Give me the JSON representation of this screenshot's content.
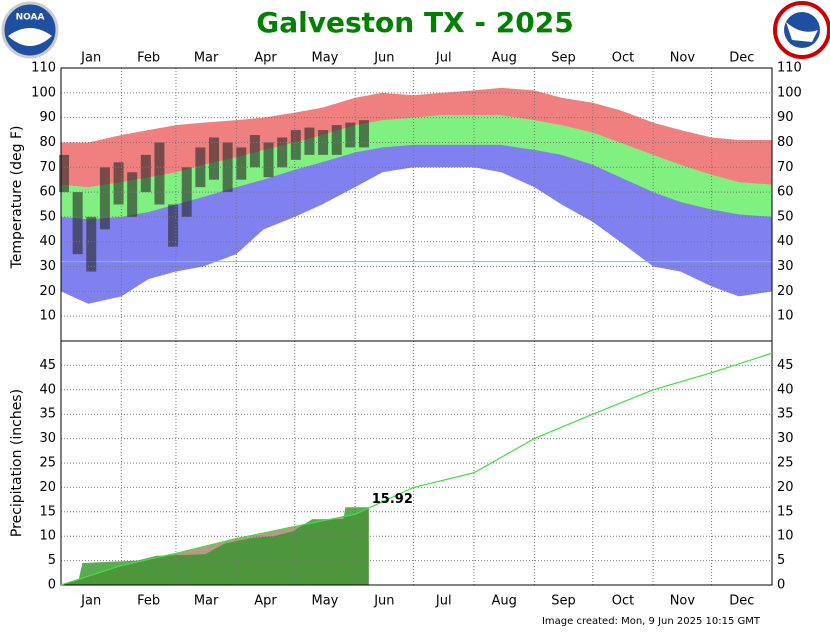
{
  "title": "Galveston TX - 2025",
  "logo_text": "NOAA",
  "footer": "Image created: Mon, 9 Jun 2025 10:15 GMT",
  "chart_data": [
    {
      "type": "temperature-band",
      "y_label": "Temperature (deg F)",
      "categories": [
        "Jan",
        "Feb",
        "Mar",
        "Apr",
        "May",
        "Jun",
        "Jul",
        "Aug",
        "Sep",
        "Oct",
        "Nov",
        "Dec"
      ],
      "xlim": [
        1,
        366
      ],
      "xticks": [
        1,
        32,
        60,
        91,
        121,
        152,
        182,
        213,
        244,
        274,
        305,
        335,
        366
      ],
      "ylim": [
        0,
        110
      ],
      "yticks": [
        10,
        20,
        30,
        40,
        50,
        60,
        70,
        80,
        90,
        100,
        110
      ],
      "grid": true,
      "freeze_line": 32,
      "x": [
        1,
        15,
        32,
        46,
        60,
        74,
        91,
        105,
        121,
        135,
        152,
        166,
        182,
        196,
        213,
        227,
        244,
        258,
        274,
        288,
        305,
        319,
        335,
        349,
        366
      ],
      "record_high": [
        80,
        80,
        83,
        85,
        87,
        88,
        89,
        90,
        92,
        94,
        98,
        100,
        99,
        100,
        101,
        102,
        101,
        98,
        96,
        93,
        88,
        85,
        82,
        81,
        81
      ],
      "normal_high": [
        63,
        62,
        64,
        66,
        68,
        71,
        74,
        77,
        80,
        83,
        87,
        89,
        90,
        91,
        91,
        91,
        89,
        87,
        84,
        80,
        75,
        71,
        67,
        64,
        63
      ],
      "normal_low": [
        50,
        49,
        50,
        52,
        55,
        58,
        62,
        65,
        69,
        72,
        76,
        78,
        79,
        79,
        79,
        79,
        77,
        75,
        71,
        66,
        60,
        56,
        53,
        51,
        50
      ],
      "record_low": [
        20,
        15,
        18,
        25,
        28,
        30,
        35,
        45,
        50,
        55,
        62,
        68,
        70,
        70,
        70,
        68,
        62,
        55,
        48,
        40,
        30,
        28,
        22,
        18,
        20
      ],
      "colors": {
        "record_high": "#f08080",
        "normal_high": "#80f080",
        "normal_low": "#8080f0",
        "observed": "rgba(40,40,40,0.6)",
        "freeze": "#40e0e0"
      },
      "obs_x": [
        1,
        8,
        15,
        22,
        29,
        36,
        43,
        50,
        57,
        64,
        71,
        78,
        85,
        92,
        99,
        106,
        113,
        120,
        127,
        134,
        141,
        148,
        155
      ],
      "obs_high": [
        75,
        60,
        50,
        70,
        72,
        68,
        75,
        80,
        55,
        70,
        78,
        82,
        80,
        78,
        83,
        80,
        82,
        85,
        86,
        85,
        87,
        88,
        89
      ],
      "obs_low": [
        60,
        35,
        28,
        45,
        55,
        50,
        60,
        55,
        38,
        50,
        62,
        65,
        60,
        65,
        70,
        66,
        70,
        73,
        75,
        75,
        75,
        78,
        78
      ]
    },
    {
      "type": "precip-area",
      "y_label": "Precipitation (inches)",
      "categories": [
        "Jan",
        "Feb",
        "Mar",
        "Apr",
        "May",
        "Jun",
        "Jul",
        "Aug",
        "Sep",
        "Oct",
        "Nov",
        "Dec"
      ],
      "xlim": [
        1,
        366
      ],
      "xticks": [
        1,
        32,
        60,
        91,
        121,
        152,
        182,
        213,
        244,
        274,
        305,
        335,
        366
      ],
      "ylim": [
        0,
        50
      ],
      "yticks": [
        0,
        5,
        10,
        15,
        20,
        25,
        30,
        35,
        40,
        45
      ],
      "grid": true,
      "colors": {
        "normal": "#40e040",
        "normal_area": "#b89888",
        "actual": "rgba(50,150,40,0.8)"
      },
      "normal": {
        "x": [
          1,
          32,
          60,
          91,
          121,
          152,
          182,
          213,
          244,
          274,
          305,
          335,
          366
        ],
        "values": [
          0,
          4,
          6.5,
          9.5,
          12,
          14.5,
          20,
          23,
          30,
          35,
          40,
          43.5,
          47.5
        ]
      },
      "actual": {
        "x": [
          1,
          10,
          12,
          40,
          50,
          75,
          85,
          100,
          110,
          120,
          130,
          146,
          147,
          159
        ],
        "values": [
          0,
          1,
          4.5,
          5,
          6,
          6.3,
          8.5,
          9.7,
          10,
          11,
          13.5,
          13.5,
          15.92,
          15.92
        ]
      }
    }
  ]
}
